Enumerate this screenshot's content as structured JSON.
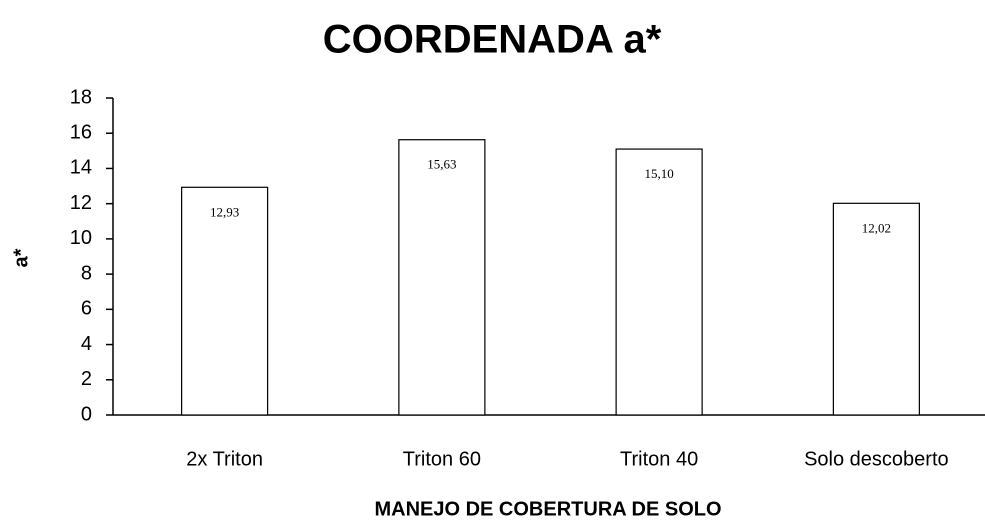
{
  "chart_data": {
    "type": "bar",
    "title": "COORDENADA a*",
    "x_label": "MANEJO DE COBERTURA DE SOLO",
    "y_label": "a*",
    "categories": [
      "2x Triton",
      "Triton 60",
      "Triton 40",
      "Solo descoberto"
    ],
    "values": [
      12.93,
      15.63,
      15.1,
      12.02
    ],
    "value_labels": [
      "12,93",
      "15,63",
      "15,10",
      "12,02"
    ],
    "color": "#ffffff",
    "ylim": [
      0,
      18
    ],
    "yticks": [
      0,
      2,
      4,
      6,
      8,
      10,
      12,
      14,
      16,
      18
    ],
    "grid": false
  }
}
